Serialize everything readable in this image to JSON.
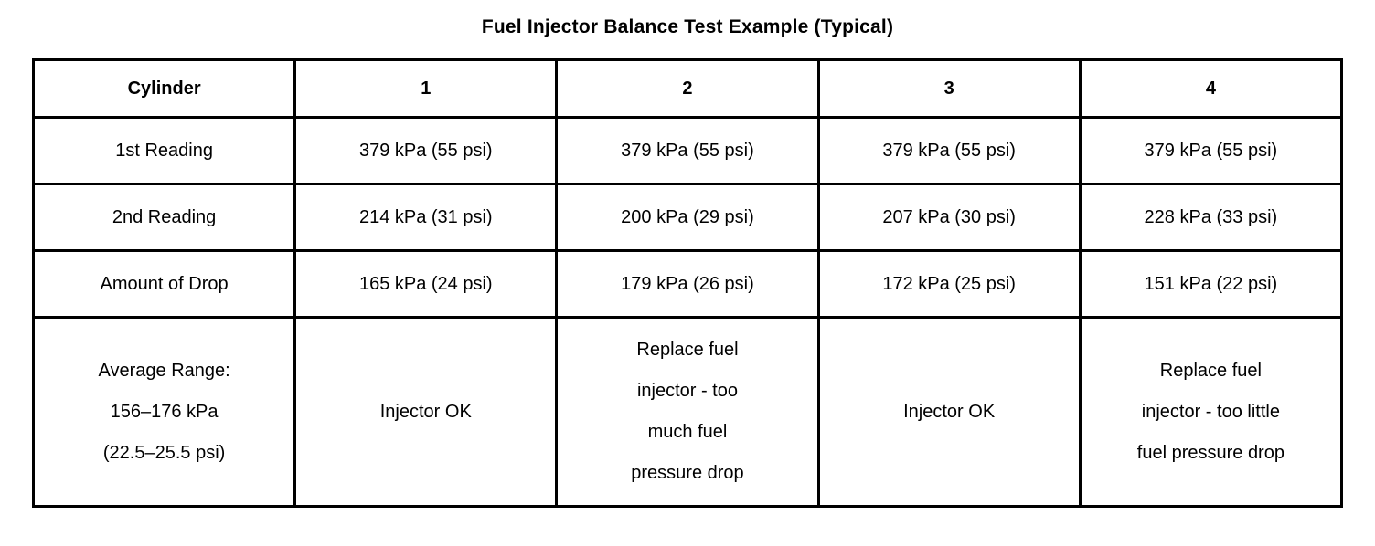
{
  "title": "Fuel Injector Balance Test Example (Typical)",
  "table": {
    "header": [
      "Cylinder",
      "1",
      "2",
      "3",
      "4"
    ],
    "rows": [
      {
        "label": "1st Reading",
        "values": [
          "379 kPa (55 psi)",
          "379 kPa (55 psi)",
          "379 kPa (55 psi)",
          "379 kPa (55 psi)"
        ]
      },
      {
        "label": "2nd Reading",
        "values": [
          "214 kPa (31 psi)",
          "200 kPa (29 psi)",
          "207 kPa (30 psi)",
          "228 kPa (33 psi)"
        ]
      },
      {
        "label": "Amount of Drop",
        "values": [
          "165 kPa (24 psi)",
          "179 kPa (26 psi)",
          "172 kPa (25 psi)",
          "151 kPa (22 psi)"
        ]
      },
      {
        "label": "Average Range:\n156–176 kPa\n(22.5–25.5 psi)",
        "values": [
          "Injector OK",
          "Replace fuel\ninjector - too\nmuch fuel\npressure drop",
          "Injector OK",
          "Replace fuel\ninjector - too little\nfuel pressure drop"
        ]
      }
    ]
  }
}
